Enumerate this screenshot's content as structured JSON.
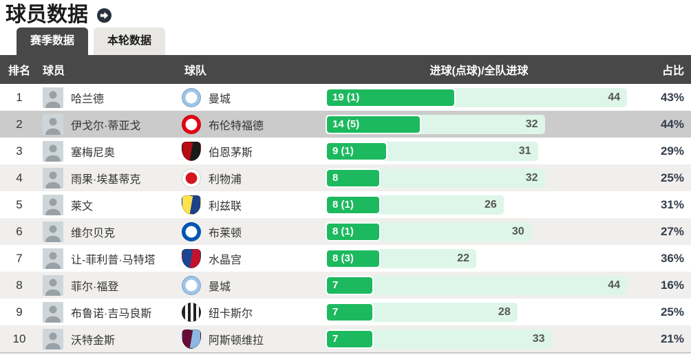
{
  "page": {
    "title": "球员数据",
    "title_arrow_icon": "arrow-right-circle"
  },
  "tabs": [
    {
      "label": "赛季数据",
      "active": true
    },
    {
      "label": "本轮数据",
      "active": false
    }
  ],
  "table": {
    "headers": {
      "rank": "排名",
      "player": "球员",
      "team": "球队",
      "goals": "进球(点球)/全队进球",
      "share": "占比"
    },
    "max_goals": 44,
    "rows": [
      {
        "rank": "1",
        "player": "哈兰德",
        "team": "曼城",
        "goals_label": "19 (1)",
        "goals": 19,
        "team_goals": 44,
        "share": "43%",
        "highlight": false,
        "badge": {
          "shape": "circle",
          "style": "ring",
          "colors": [
            "#ffffff",
            "#9dc5e8"
          ]
        }
      },
      {
        "rank": "2",
        "player": "伊戈尔·蒂亚戈",
        "team": "布伦特福德",
        "goals_label": "14 (5)",
        "goals": 14,
        "team_goals": 32,
        "share": "44%",
        "highlight": true,
        "badge": {
          "shape": "circle",
          "style": "ring",
          "colors": [
            "#ffffff",
            "#e30613"
          ]
        }
      },
      {
        "rank": "3",
        "player": "塞梅尼奥",
        "team": "伯恩茅斯",
        "goals_label": "9 (1)",
        "goals": 9,
        "team_goals": 31,
        "share": "29%",
        "highlight": false,
        "badge": {
          "shape": "shield",
          "style": "split",
          "colors": [
            "#b50d12",
            "#1a1a1a"
          ]
        }
      },
      {
        "rank": "4",
        "player": "雨果·埃基蒂克",
        "team": "利物浦",
        "goals_label": "8",
        "goals": 8,
        "team_goals": 32,
        "share": "25%",
        "highlight": false,
        "badge": {
          "shape": "circle",
          "style": "ring",
          "colors": [
            "#d3171e",
            "#ffffff"
          ]
        }
      },
      {
        "rank": "5",
        "player": "莱文",
        "team": "利兹联",
        "goals_label": "8 (1)",
        "goals": 8,
        "team_goals": 26,
        "share": "31%",
        "highlight": false,
        "badge": {
          "shape": "shield",
          "style": "split",
          "colors": [
            "#ffe24d",
            "#1d428a"
          ]
        }
      },
      {
        "rank": "6",
        "player": "维尔贝克",
        "team": "布莱顿",
        "goals_label": "8 (1)",
        "goals": 8,
        "team_goals": 30,
        "share": "27%",
        "highlight": false,
        "badge": {
          "shape": "circle",
          "style": "ring",
          "colors": [
            "#ffffff",
            "#0057b8"
          ]
        }
      },
      {
        "rank": "7",
        "player": "让-菲利普·马特塔",
        "team": "水晶宫",
        "goals_label": "8 (3)",
        "goals": 8,
        "team_goals": 22,
        "share": "36%",
        "highlight": false,
        "badge": {
          "shape": "shield",
          "style": "split",
          "colors": [
            "#1b458f",
            "#c4122e"
          ]
        }
      },
      {
        "rank": "8",
        "player": "菲尔·福登",
        "team": "曼城",
        "goals_label": "7",
        "goals": 7,
        "team_goals": 44,
        "share": "16%",
        "highlight": false,
        "badge": {
          "shape": "circle",
          "style": "ring",
          "colors": [
            "#ffffff",
            "#9dc5e8"
          ]
        }
      },
      {
        "rank": "9",
        "player": "布鲁诺·吉马良斯",
        "team": "纽卡斯尔",
        "goals_label": "7",
        "goals": 7,
        "team_goals": 28,
        "share": "25%",
        "highlight": false,
        "badge": {
          "shape": "circle",
          "style": "stripes",
          "colors": [
            "#241f21",
            "#ffffff"
          ]
        }
      },
      {
        "rank": "10",
        "player": "沃特金斯",
        "team": "阿斯顿维拉",
        "goals_label": "7",
        "goals": 7,
        "team_goals": 33,
        "share": "21%",
        "highlight": false,
        "badge": {
          "shape": "shield",
          "style": "split",
          "colors": [
            "#670e36",
            "#8db8e3"
          ]
        }
      }
    ]
  },
  "colors": {
    "header_bg": "#484848",
    "bar_green": "#1db95f",
    "bar_mint": "#ddf6e9",
    "row_alt": "#f0efed",
    "row_highlight": "#cbcbcb",
    "percent_text": "#333c4a"
  }
}
